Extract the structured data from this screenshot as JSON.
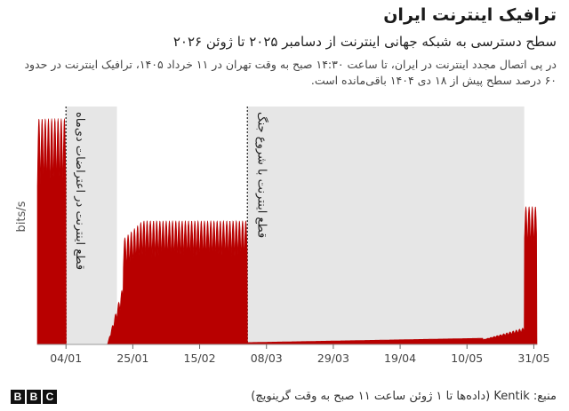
{
  "header": {
    "title": "ترافیک اینترنت ایران",
    "subtitle": "سطح دسترسی به شبکه جهانی اینترنت از دسامبر ۲۰۲۵ تا ژوئن ۲۰۲۶",
    "description": "در پی اتصال مجدد اینترنت در ایران، تا ساعت ۱۴:۳۰ صبح به وقت تهران در ۱۱ خرداد ۱۴۰۵، ترافیک اینترنت در حدود ۶۰ درصد سطح پیش از ۱۸ دی ۱۴۰۴ باقی‌مانده است."
  },
  "footer": {
    "logo": [
      "B",
      "B",
      "C"
    ],
    "source": "منبع: Kentik (داده‌ها تا ۱ ژوئن ساعت ۱۱ صبح به وقت گرینویچ)"
  },
  "chart_data": {
    "type": "area",
    "ylabel": "bits/s",
    "xticks": [
      "04/01",
      "25/01",
      "15/02",
      "08/03",
      "29/03",
      "19/04",
      "10/05",
      "31/05"
    ],
    "color": "#b80000",
    "shutdown_color": "#e6e6e6",
    "shutdowns": [
      {
        "start_day": 9,
        "end_day": 25,
        "label": "قطع اینترنت در اعتراضات دی‌ماه"
      },
      {
        "start_day": 66,
        "end_day": 153,
        "label": "قطع اینترنت با شروع جنگ"
      }
    ],
    "x_start": "2025-12-26",
    "x_end": "2026-06-01",
    "y_relative_levels": [
      {
        "day_from": 0,
        "day_to": 9,
        "level": 0.95
      },
      {
        "day_from": 9,
        "day_to": 22,
        "level": 0.0
      },
      {
        "day_from": 22,
        "day_to": 27,
        "level": 0.25
      },
      {
        "day_from": 27,
        "day_to": 66,
        "level": 0.52
      },
      {
        "day_from": 66,
        "day_to": 140,
        "level": 0.02
      },
      {
        "day_from": 140,
        "day_to": 153,
        "level": 0.05
      },
      {
        "day_from": 153,
        "day_to": 157,
        "level": 0.58
      }
    ]
  }
}
